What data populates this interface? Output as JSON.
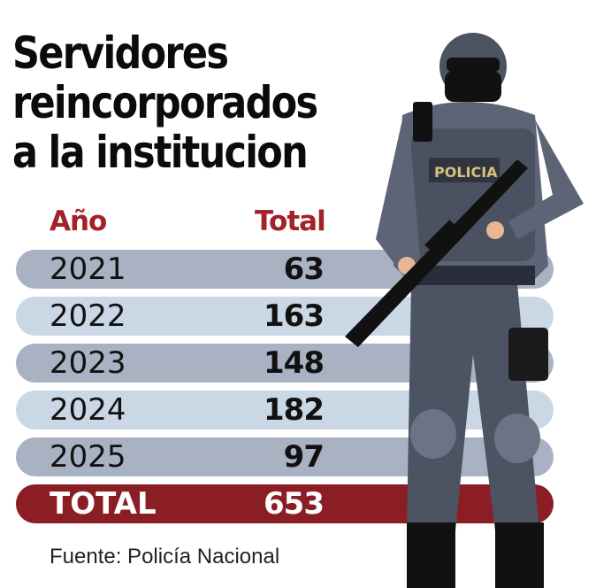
{
  "title_lines": [
    "Servidores",
    "reincorporados",
    "a la institucion"
  ],
  "chart_data": {
    "type": "table",
    "title": "Servidores reincorporados a la institucion",
    "columns": [
      "Año",
      "Total"
    ],
    "rows": [
      {
        "year": "2021",
        "total": "63"
      },
      {
        "year": "2022",
        "total": "163"
      },
      {
        "year": "2023",
        "total": "148"
      },
      {
        "year": "2024",
        "total": "182"
      },
      {
        "year": "2025",
        "total": "97"
      }
    ],
    "total_row": {
      "label": "TOTAL",
      "total": "653"
    }
  },
  "illustration": {
    "badge_text": "POLICIA"
  },
  "source": "Fuente: Policía Nacional",
  "colors": {
    "accent": "#a32129",
    "total_bg": "#8b1e24",
    "row_dark": "#a9b2c2",
    "row_light": "#c9d8e4"
  }
}
